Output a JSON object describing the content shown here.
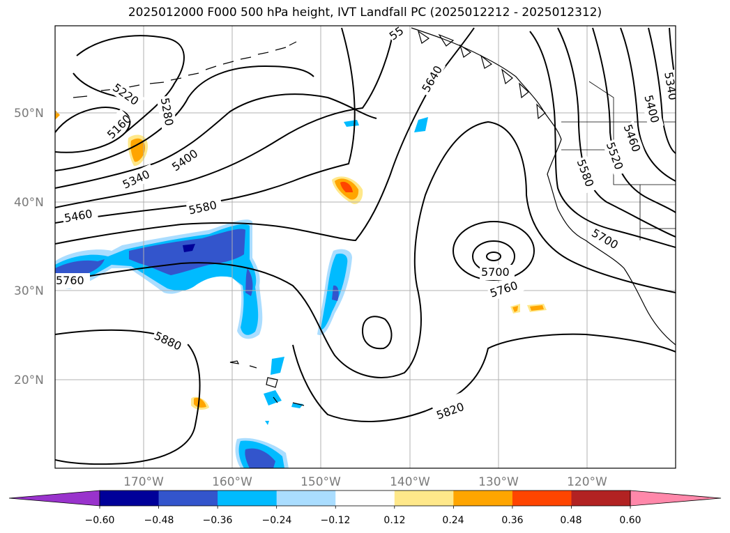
{
  "title": "2025012000 F000 500 hPa height, IVT Landfall PC (2025012212 - 2025012312)",
  "lat_labels": [
    "50°N",
    "40°N",
    "30°N",
    "20°N"
  ],
  "lon_labels": [
    "170°W",
    "160°W",
    "150°W",
    "140°W",
    "130°W",
    "120°W"
  ],
  "contour_labels": [
    "5160",
    "5220",
    "5280",
    "5340",
    "5400",
    "5460",
    "5580",
    "5760",
    "5880",
    "5820",
    "5640",
    "5700",
    "5760",
    "5700",
    "5580",
    "5520",
    "5460",
    "5400",
    "5340",
    "55"
  ],
  "colorbar": {
    "ticks": [
      "−0.60",
      "−0.48",
      "−0.36",
      "−0.24",
      "−0.12",
      "0.12",
      "0.24",
      "0.36",
      "0.48",
      "0.60"
    ],
    "colors": [
      "#9933cc",
      "#000099",
      "#3355cc",
      "#00bbff",
      "#aaddff",
      "#ffffff",
      "#ffe88a",
      "#ffa500",
      "#ff4500",
      "#b22222",
      "#ff88aa"
    ]
  }
}
